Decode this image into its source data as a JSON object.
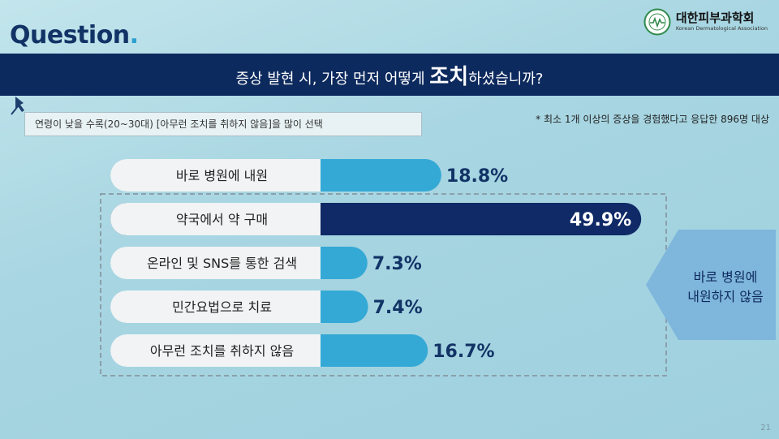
{
  "header": {
    "question_word": "Question",
    "question_dot": ".",
    "logo_ko": "대한피부과학회",
    "logo_en": "Korean Dermatological Association",
    "logo_icon": "dermatology-society-emblem-icon"
  },
  "banner": {
    "prefix": "증상 발현 시, 가장 먼저 어떻게 ",
    "emphasis": "조치",
    "suffix": "하셨습니까?"
  },
  "note": "연령이 낮을 수록(20~30대) [아무런 조치를 취하지 않음]을 많이 선택",
  "footnote": "* 최소 1개 이상의 증상을 경험했다고 응답한 896명 대상",
  "callout": {
    "line1": "바로 병원에",
    "line2": "내원하지 않음"
  },
  "page_number": "21",
  "colors": {
    "navy": "#0d2a5e",
    "accent": "#35a9d6",
    "highlight": "#0f2a66",
    "label_bg": "#f1f3f4",
    "callout": "#7fb6dc"
  },
  "chart_data": {
    "type": "bar",
    "orientation": "horizontal",
    "title": "",
    "categories": [
      "바로 병원에 내원",
      "약국에서 약 구매",
      "온라인 및 SNS를 통한 검색",
      "민간요법으로 치료",
      "아무런 조치를 취하지 않음"
    ],
    "values": [
      18.8,
      49.9,
      7.3,
      7.4,
      16.7
    ],
    "value_labels": [
      "18.8%",
      "49.9%",
      "7.3%",
      "7.4%",
      "16.7%"
    ],
    "unit": "%",
    "highlighted_index": 1,
    "grouped_indices": [
      1,
      2,
      3,
      4
    ]
  }
}
